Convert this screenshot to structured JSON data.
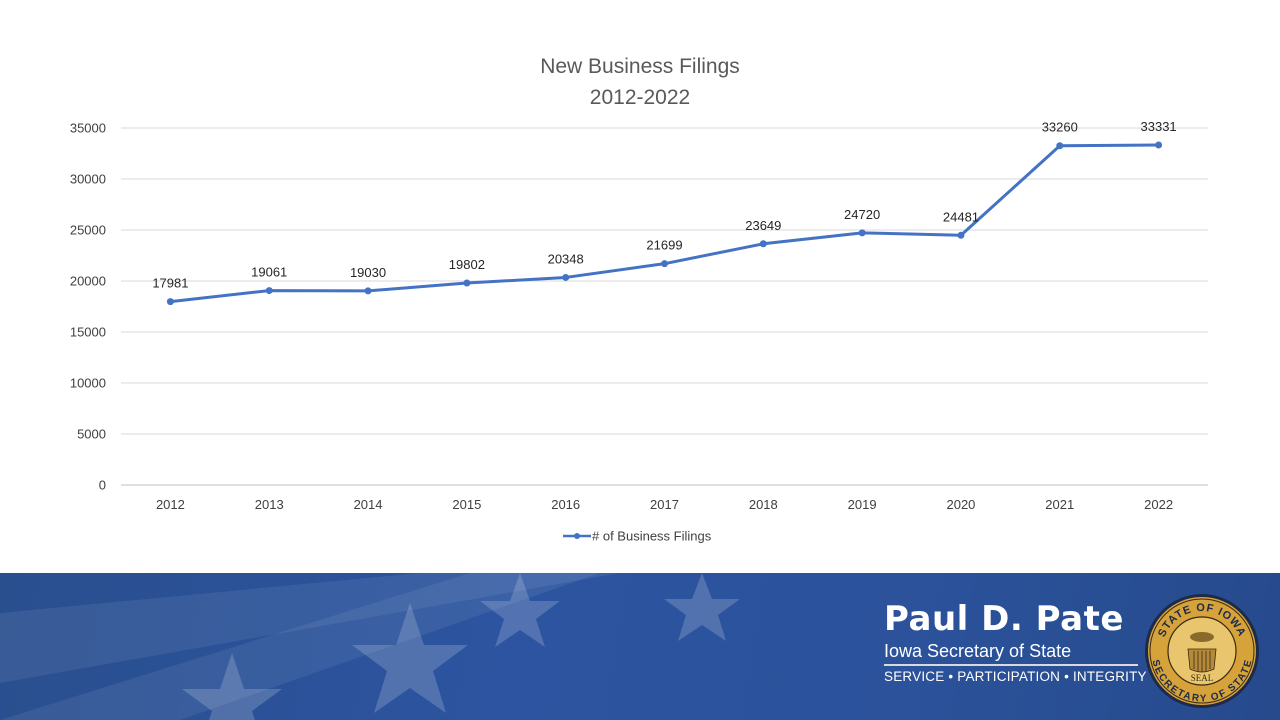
{
  "chart_data": {
    "type": "line",
    "title": "New Business Filings",
    "subtitle": "2012-2022",
    "categories": [
      "2012",
      "2013",
      "2014",
      "2015",
      "2016",
      "2017",
      "2018",
      "2019",
      "2020",
      "2021",
      "2022"
    ],
    "series": [
      {
        "name": "# of Business Filings",
        "values": [
          17981,
          19061,
          19030,
          19802,
          20348,
          21699,
          23649,
          24720,
          24481,
          33260,
          33331
        ],
        "color": "#4472c4"
      }
    ],
    "yticks": [
      "0",
      "5000",
      "10000",
      "15000",
      "20000",
      "25000",
      "30000",
      "35000"
    ],
    "ylim": [
      0,
      35000
    ],
    "grid": true,
    "data_labels": true,
    "legend_position": "bottom"
  },
  "footer": {
    "name": "Paul D. Pate",
    "office": "Iowa Secretary of State",
    "motto": "SERVICE • PARTICIPATION • INTEGRITY",
    "seal_text_top": "STATE OF IOWA",
    "seal_text_bottom": "SECRETARY OF STATE",
    "seal_center": "SEAL"
  }
}
